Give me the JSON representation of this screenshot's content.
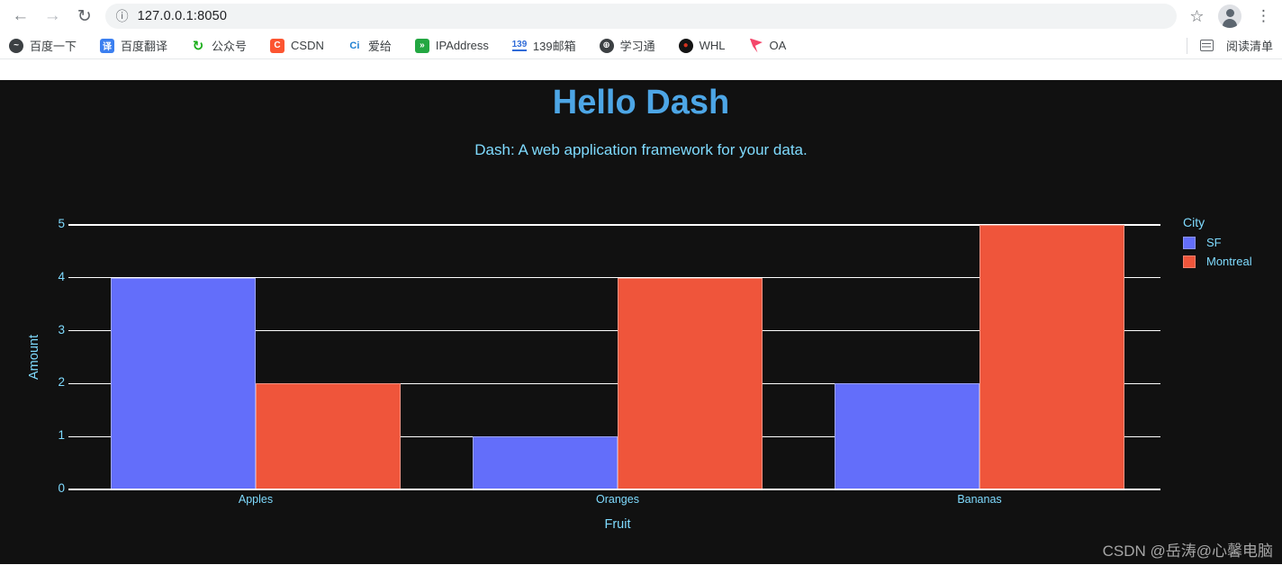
{
  "browser": {
    "back_icon": "←",
    "forward_icon": "→",
    "reload_icon": "↻",
    "info_icon": "ⓘ",
    "url": "127.0.0.1:8050",
    "star_icon": "☆",
    "menu_icon": "⋮",
    "bookmarks": [
      {
        "label": "百度一下",
        "icon": {
          "shape": "circle",
          "bg": "#3c4043",
          "fg": "#ffffff",
          "glyph": "~"
        }
      },
      {
        "label": "百度翻译",
        "icon": {
          "shape": "square",
          "bg": "#3b7ff0",
          "fg": "#ffffff",
          "glyph": "译"
        }
      },
      {
        "label": "公众号",
        "icon": {
          "shape": "text",
          "bg": "",
          "fg": "#1aad19",
          "glyph": "↻"
        }
      },
      {
        "label": "CSDN",
        "icon": {
          "shape": "square",
          "bg": "#fc5531",
          "fg": "#ffffff",
          "glyph": "C"
        }
      },
      {
        "label": "爱给",
        "icon": {
          "shape": "text",
          "bg": "",
          "fg": "#1f80d2",
          "glyph": "Ci"
        }
      },
      {
        "label": "IPAddress",
        "icon": {
          "shape": "square",
          "bg": "#23a742",
          "fg": "#ffffff",
          "glyph": "»"
        }
      },
      {
        "label": "139邮箱",
        "icon": {
          "shape": "text-u",
          "bg": "",
          "fg": "#2f6bd8",
          "glyph": "139"
        }
      },
      {
        "label": "学习通",
        "icon": {
          "shape": "circle",
          "bg": "#3c4043",
          "fg": "#ffffff",
          "glyph": "⊕"
        }
      },
      {
        "label": "WHL",
        "icon": {
          "shape": "circle",
          "bg": "#141414",
          "fg": "#d4321e",
          "glyph": "●"
        }
      },
      {
        "label": "OA",
        "icon": {
          "shape": "flag",
          "bg": "#f4476b",
          "fg": "#e8403f",
          "glyph": ""
        }
      }
    ],
    "reading_list_label": "阅读清单"
  },
  "page": {
    "title": "Hello Dash",
    "subtitle": "Dash: A web application framework for your data.",
    "title_color": "#4da6e6",
    "text_color": "#7fdbff",
    "background": "#111111",
    "watermark": "CSDN @岳涛@心馨电脑"
  },
  "chart_data": {
    "type": "bar",
    "mode": "grouped",
    "title": "",
    "categories": [
      "Apples",
      "Oranges",
      "Bananas"
    ],
    "series": [
      {
        "name": "SF",
        "color": "#636EFA",
        "values": [
          4,
          1,
          2
        ]
      },
      {
        "name": "Montreal",
        "color": "#EF553B",
        "values": [
          2,
          4,
          5
        ]
      }
    ],
    "legend_title": "City",
    "legend_position": "right",
    "xlabel": "Fruit",
    "ylabel": "Amount",
    "ylim": [
      0,
      5
    ],
    "yticks": [
      0,
      1,
      2,
      3,
      4,
      5
    ],
    "grid": true,
    "gridcolor": "#ffffff",
    "plot_bgcolor": "#111111",
    "text_color": "#7fdbff"
  }
}
